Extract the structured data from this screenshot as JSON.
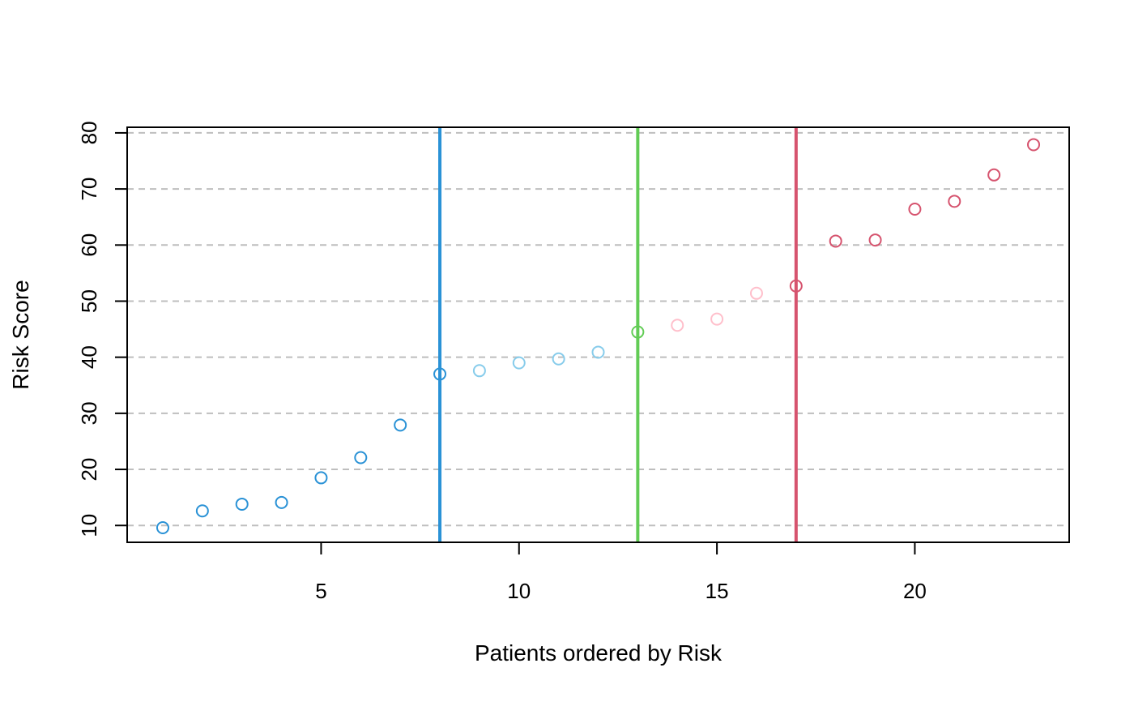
{
  "chart_data": {
    "type": "scatter",
    "title": "",
    "xlabel": "Patients ordered by Risk",
    "ylabel": "Risk Score",
    "xlim": [
      0.1,
      23.9
    ],
    "ylim": [
      7,
      81
    ],
    "x_ticks": [
      5,
      10,
      15,
      20
    ],
    "y_ticks": [
      10,
      20,
      30,
      40,
      50,
      60,
      70,
      80
    ],
    "grid": "horizontal dashed",
    "points": [
      {
        "x": 1,
        "y": 9.6,
        "color": "#2a92d6"
      },
      {
        "x": 2,
        "y": 12.6,
        "color": "#2a92d6"
      },
      {
        "x": 3,
        "y": 13.8,
        "color": "#2a92d6"
      },
      {
        "x": 4,
        "y": 14.1,
        "color": "#2a92d6"
      },
      {
        "x": 5,
        "y": 18.5,
        "color": "#2a92d6"
      },
      {
        "x": 6,
        "y": 22.1,
        "color": "#2a92d6"
      },
      {
        "x": 7,
        "y": 27.9,
        "color": "#2a92d6"
      },
      {
        "x": 8,
        "y": 37.0,
        "color": "#2a92d6"
      },
      {
        "x": 9,
        "y": 37.6,
        "color": "#87cceb"
      },
      {
        "x": 10,
        "y": 39.0,
        "color": "#87cceb"
      },
      {
        "x": 11,
        "y": 39.7,
        "color": "#87cceb"
      },
      {
        "x": 12,
        "y": 40.9,
        "color": "#87cceb"
      },
      {
        "x": 13,
        "y": 44.5,
        "color": "#62cc55"
      },
      {
        "x": 14,
        "y": 45.7,
        "color": "#ffbfcb"
      },
      {
        "x": 15,
        "y": 46.8,
        "color": "#ffbfcb"
      },
      {
        "x": 16,
        "y": 51.4,
        "color": "#ffbfcb"
      },
      {
        "x": 17,
        "y": 52.7,
        "color": "#d6536e"
      },
      {
        "x": 18,
        "y": 60.7,
        "color": "#d6536e"
      },
      {
        "x": 19,
        "y": 60.9,
        "color": "#d6536e"
      },
      {
        "x": 20,
        "y": 66.4,
        "color": "#d6536e"
      },
      {
        "x": 21,
        "y": 67.8,
        "color": "#d6536e"
      },
      {
        "x": 22,
        "y": 72.5,
        "color": "#d6536e"
      },
      {
        "x": 23,
        "y": 77.9,
        "color": "#d6536e"
      }
    ],
    "vlines": [
      {
        "x": 8,
        "color": "#2a92d6"
      },
      {
        "x": 13,
        "color": "#62cc55"
      },
      {
        "x": 17,
        "color": "#d6536e"
      }
    ]
  },
  "colors": {
    "axis": "#000000",
    "grid": "#bebebe",
    "background": "#ffffff"
  }
}
